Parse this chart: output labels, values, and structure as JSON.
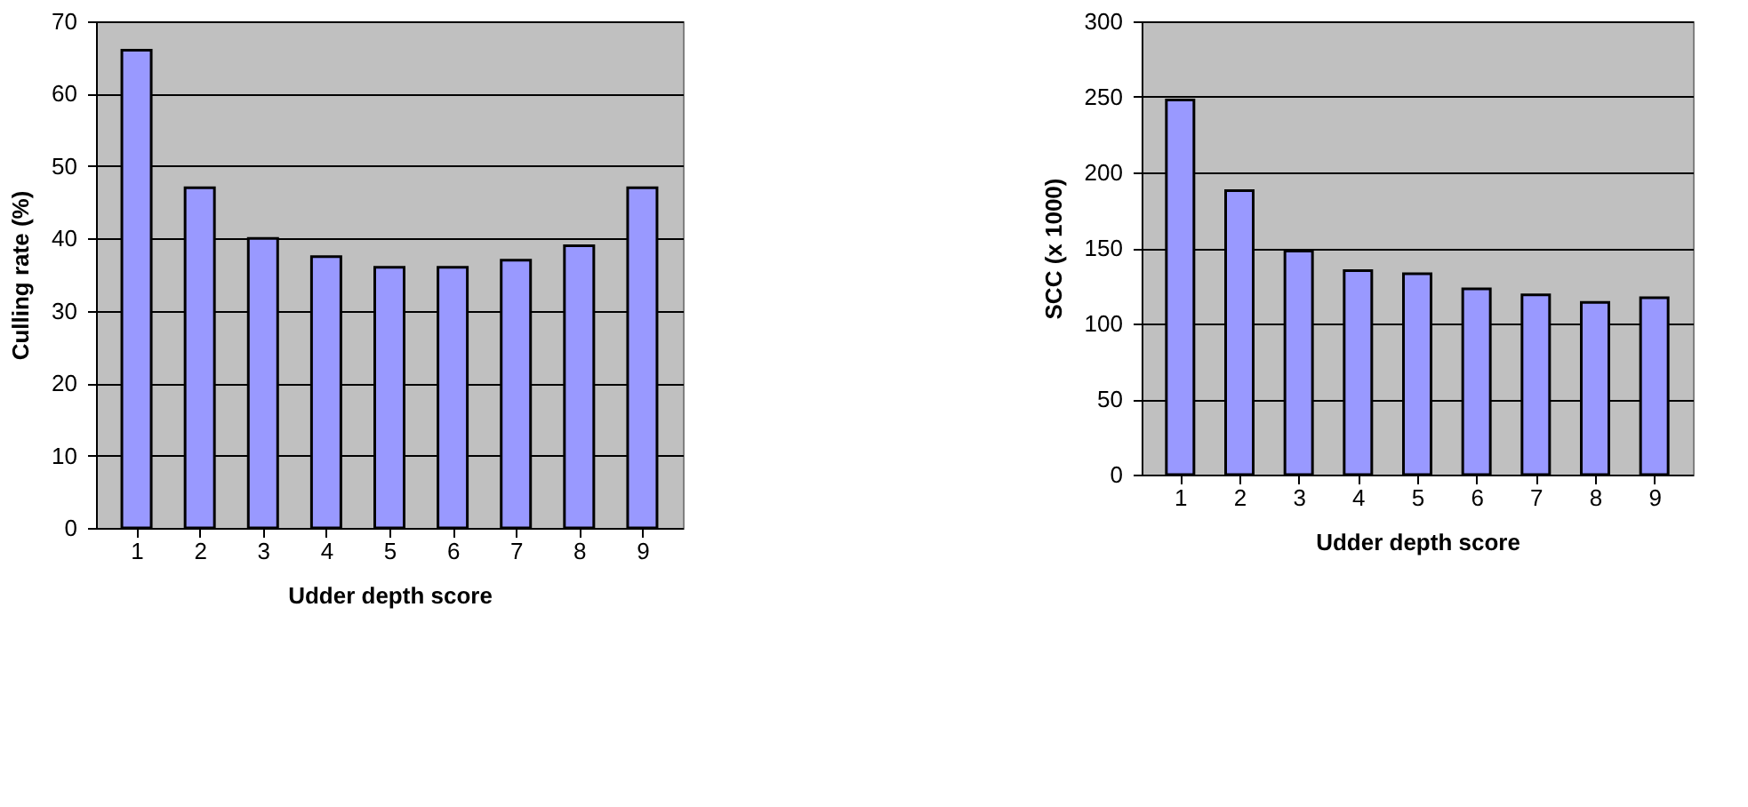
{
  "chart_data": [
    {
      "type": "bar",
      "xlabel": "Udder depth score",
      "ylabel": "Culling rate (%)",
      "categories": [
        "1",
        "2",
        "3",
        "4",
        "5",
        "6",
        "7",
        "8",
        "9"
      ],
      "values": [
        66,
        47,
        40,
        37.5,
        36,
        36,
        37,
        39,
        47
      ],
      "color": "#9999ff",
      "ylim": [
        0,
        70
      ],
      "yticks": [
        0,
        10,
        20,
        30,
        40,
        50,
        60,
        70
      ],
      "grid": "y"
    },
    {
      "type": "bar",
      "xlabel": "Udder depth score",
      "ylabel": "SCC (x 1000)",
      "categories": [
        "1",
        "2",
        "3",
        "4",
        "5",
        "6",
        "7",
        "8",
        "9"
      ],
      "values": [
        248,
        188,
        148,
        135,
        133,
        123,
        119,
        114,
        117
      ],
      "color": "#9999ff",
      "ylim": [
        0,
        300
      ],
      "yticks": [
        0,
        50,
        100,
        150,
        200,
        250,
        300
      ],
      "grid": "y"
    }
  ]
}
